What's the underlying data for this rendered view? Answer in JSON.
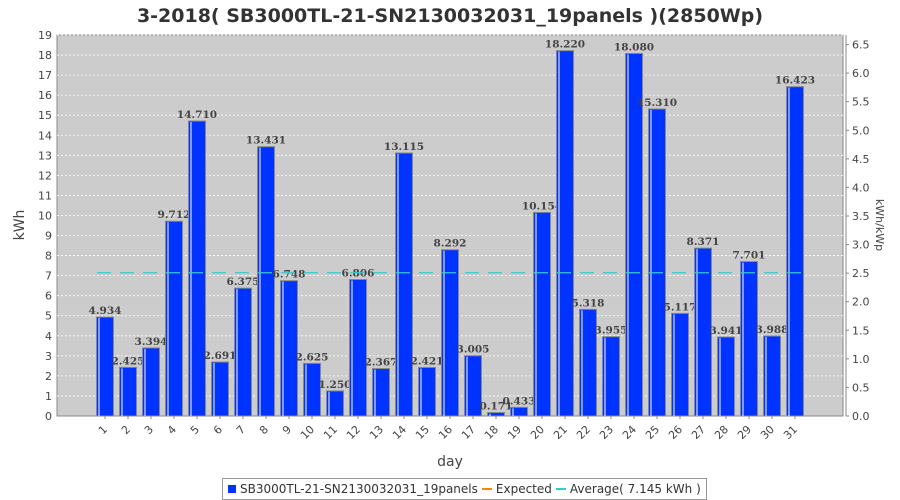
{
  "chart_data": {
    "type": "bar",
    "title": "3-2018( SB3000TL-21-SN2130032031_19panels )(2850Wp)",
    "xlabel": "day",
    "ylabel": "kWh",
    "y2label": "kWh/kWp",
    "ylim": [
      0,
      19
    ],
    "y2lim": [
      0,
      6.667
    ],
    "y2ticks": [
      "0.0",
      "0.5",
      "1.0",
      "1.5",
      "2.0",
      "2.5",
      "3.0",
      "3.5",
      "4.0",
      "4.5",
      "5.0",
      "5.5",
      "6.0",
      "6.5"
    ],
    "categories": [
      "1",
      "2",
      "3",
      "4",
      "5",
      "6",
      "7",
      "8",
      "9",
      "10",
      "11",
      "12",
      "13",
      "14",
      "15",
      "16",
      "17",
      "18",
      "19",
      "20",
      "21",
      "22",
      "23",
      "24",
      "25",
      "26",
      "27",
      "28",
      "29",
      "30",
      "31"
    ],
    "series": [
      {
        "name": "SB3000TL-21-SN2130032031_19panels",
        "color": "#0033ff",
        "values": [
          4.934,
          2.425,
          3.394,
          9.712,
          14.71,
          2.691,
          6.375,
          13.431,
          6.748,
          2.625,
          1.25,
          6.806,
          2.367,
          13.115,
          2.421,
          8.292,
          3.005,
          0.171,
          0.433,
          10.154,
          18.22,
          5.318,
          3.955,
          18.08,
          15.31,
          5.117,
          8.371,
          3.941,
          7.701,
          3.988,
          16.423
        ],
        "labels": [
          "4.934",
          "2.425",
          "3.394",
          "9.712",
          "14.710",
          "2.691",
          "6.375",
          "13.431",
          "6.748",
          "2.625",
          "1.250",
          "6.806",
          "2.367",
          "13.115",
          "2.421",
          "8.292",
          "3.005",
          "0.171",
          "0.433",
          "10.154",
          "18.220",
          "5.318",
          "3.955",
          "18.080",
          "15.310",
          "5.117",
          "8.371",
          "3.941",
          "7.701",
          "3.988",
          "16.423"
        ]
      }
    ],
    "average": 7.145,
    "legend": [
      {
        "label": "SB3000TL-21-SN2130032031_19panels",
        "color": "#0033ff"
      },
      {
        "label": "Expected",
        "color": "#ff8800"
      },
      {
        "label": "Average( 7.145 kWh )",
        "color": "#33cccc"
      }
    ],
    "legend_position": "bottom",
    "grid": true
  }
}
